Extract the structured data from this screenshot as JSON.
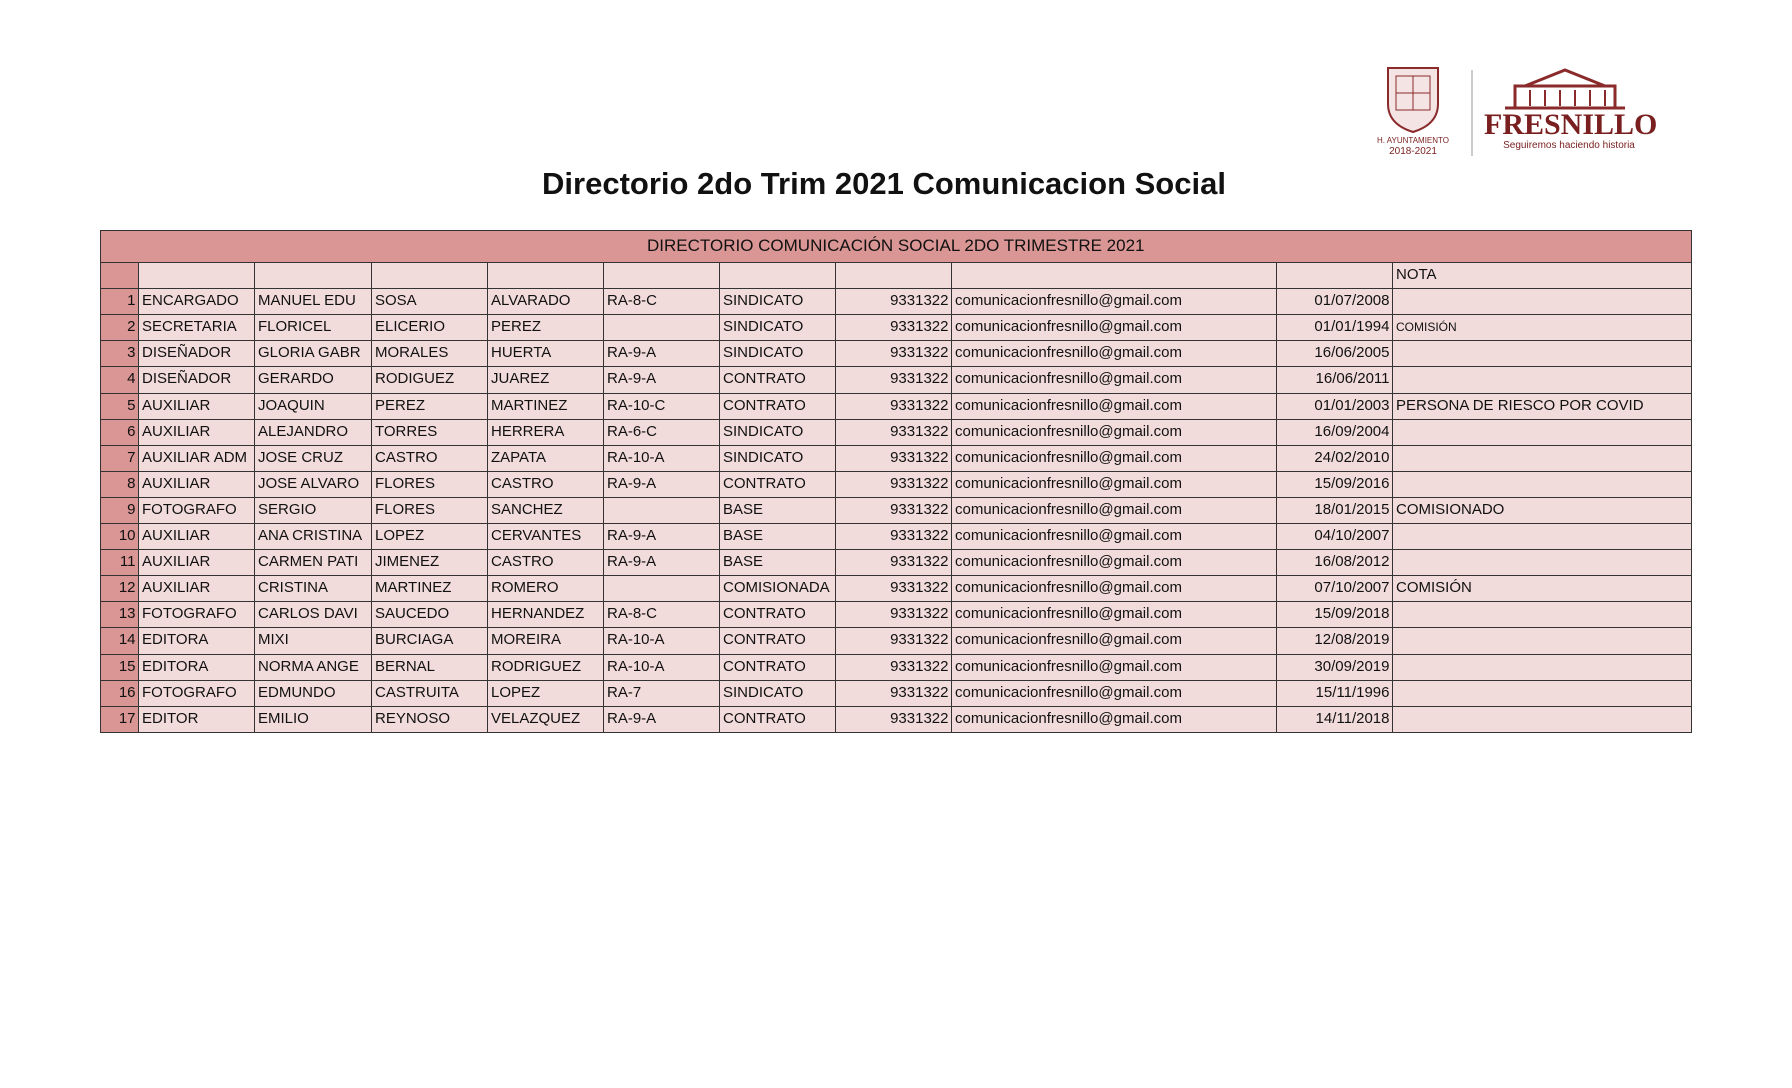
{
  "logo": {
    "council": "H. AYUNTAMIENTO",
    "period": "2018-2021",
    "city": "FRESNILLO",
    "slogan": "Seguiremos haciendo historia"
  },
  "title": "Directorio 2do Trim 2021 Comunicacion Social",
  "table": {
    "caption": "DIRECTORIO COMUNICACIÓN SOCIAL 2DO TRIMESTRE 2021",
    "note_header": "NOTA",
    "rows": [
      [
        1,
        "ENCARGADO",
        "MANUEL EDU",
        "SOSA",
        "ALVARADO",
        "RA-8-C",
        "SINDICATO",
        9331322,
        "comunicacionfresnillo@gmail.com",
        "01/07/2008",
        null
      ],
      [
        2,
        "SECRETARIA",
        "FLORICEL",
        "ELICERIO",
        "PEREZ",
        null,
        "SINDICATO",
        9331322,
        "comunicacionfresnillo@gmail.com",
        "01/01/1994",
        "COMISIÓN"
      ],
      [
        3,
        "DISEÑADOR",
        "GLORIA GABR",
        "MORALES",
        "HUERTA",
        "RA-9-A",
        "SINDICATO",
        9331322,
        "comunicacionfresnillo@gmail.com",
        "16/06/2005",
        null
      ],
      [
        4,
        "DISEÑADOR",
        "GERARDO",
        "RODIGUEZ",
        "JUAREZ",
        "RA-9-A",
        "CONTRATO",
        9331322,
        "comunicacionfresnillo@gmail.com",
        "16/06/2011",
        null
      ],
      [
        5,
        "AUXILIAR",
        "JOAQUIN",
        "PEREZ",
        "MARTINEZ",
        "RA-10-C",
        "CONTRATO",
        9331322,
        "comunicacionfresnillo@gmail.com",
        "01/01/2003",
        "PERSONA DE RIESCO POR COVID"
      ],
      [
        6,
        "AUXILIAR",
        "ALEJANDRO",
        "TORRES",
        "HERRERA",
        "RA-6-C",
        "SINDICATO",
        9331322,
        "comunicacionfresnillo@gmail.com",
        "16/09/2004",
        null
      ],
      [
        7,
        "AUXILIAR ADM",
        "JOSE CRUZ",
        "CASTRO",
        "ZAPATA",
        "RA-10-A",
        "SINDICATO",
        9331322,
        "comunicacionfresnillo@gmail.com",
        "24/02/2010",
        null
      ],
      [
        8,
        "AUXILIAR",
        "JOSE ALVARO",
        "FLORES",
        "CASTRO",
        "RA-9-A",
        "CONTRATO",
        9331322,
        "comunicacionfresnillo@gmail.com",
        "15/09/2016",
        null
      ],
      [
        9,
        "FOTOGRAFO",
        "SERGIO",
        "FLORES",
        "SANCHEZ",
        null,
        "BASE",
        9331322,
        "comunicacionfresnillo@gmail.com",
        "18/01/2015",
        "COMISIONADO"
      ],
      [
        10,
        "AUXILIAR",
        "ANA CRISTINA",
        "LOPEZ",
        "CERVANTES",
        "RA-9-A",
        "BASE",
        9331322,
        "comunicacionfresnillo@gmail.com",
        "04/10/2007",
        null
      ],
      [
        11,
        "AUXILIAR",
        "CARMEN PATI",
        "JIMENEZ",
        "CASTRO",
        "RA-9-A",
        "BASE",
        9331322,
        "comunicacionfresnillo@gmail.com",
        "16/08/2012",
        null
      ],
      [
        12,
        "AUXILIAR",
        "CRISTINA",
        "MARTINEZ",
        "ROMERO",
        null,
        "COMISIONADA",
        9331322,
        "comunicacionfresnillo@gmail.com",
        "07/10/2007",
        "COMISIÓN"
      ],
      [
        13,
        "FOTOGRAFO",
        "CARLOS DAVI",
        "SAUCEDO",
        "HERNANDEZ",
        "RA-8-C",
        "CONTRATO",
        9331322,
        "comunicacionfresnillo@gmail.com",
        "15/09/2018",
        null
      ],
      [
        14,
        "EDITORA",
        "MIXI",
        "BURCIAGA",
        "MOREIRA",
        "RA-10-A",
        "CONTRATO",
        9331322,
        "comunicacionfresnillo@gmail.com",
        "12/08/2019",
        null
      ],
      [
        15,
        "EDITORA",
        "NORMA ANGE",
        "BERNAL",
        "RODRIGUEZ",
        "RA-10-A",
        "CONTRATO",
        9331322,
        "comunicacionfresnillo@gmail.com",
        "30/09/2019",
        null
      ],
      [
        16,
        "FOTOGRAFO",
        "EDMUNDO",
        "CASTRUITA",
        "LOPEZ",
        "RA-7",
        "SINDICATO",
        9331322,
        "comunicacionfresnillo@gmail.com",
        "15/11/1996",
        null
      ],
      [
        17,
        "EDITOR",
        "EMILIO",
        "REYNOSO",
        "VELAZQUEZ",
        "RA-9-A",
        "CONTRATO",
        9331322,
        "comunicacionfresnillo@gmail.com",
        "14/11/2018",
        null
      ]
    ]
  }
}
